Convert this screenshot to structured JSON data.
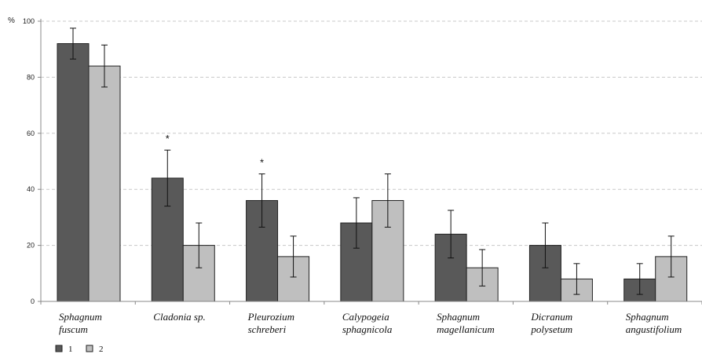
{
  "chart_data": {
    "type": "bar",
    "ylabel": "%",
    "ylim": [
      0,
      100
    ],
    "yticks": [
      0,
      20,
      40,
      60,
      80,
      100
    ],
    "grid": "horizontal-dashed",
    "legend_position": "bottom-left",
    "categories": [
      [
        "Sphagnum",
        "fuscum"
      ],
      [
        "Cladonia sp."
      ],
      [
        "Pleurozium",
        "schreberi"
      ],
      [
        "Calypogeia",
        "sphagnicola"
      ],
      [
        "Sphagnum",
        "magellanicum"
      ],
      [
        "Dicranum",
        "polysetum"
      ],
      [
        "Sphagnum",
        "angustifolium"
      ]
    ],
    "series": [
      {
        "name": "1",
        "color": "#595959",
        "values": [
          92,
          44,
          36,
          28,
          24,
          20,
          8
        ],
        "errors": [
          5.5,
          10,
          9.5,
          9,
          8.5,
          8,
          5.5
        ]
      },
      {
        "name": "2",
        "color": "#bfbfbf",
        "values": [
          84,
          20,
          16,
          36,
          12,
          8,
          16
        ],
        "errors": [
          7.5,
          8,
          7.3,
          9.5,
          6.5,
          5.5,
          7.3
        ]
      }
    ],
    "annotations": [
      {
        "category_index": 1,
        "text": "*"
      },
      {
        "category_index": 2,
        "text": "*"
      }
    ]
  }
}
